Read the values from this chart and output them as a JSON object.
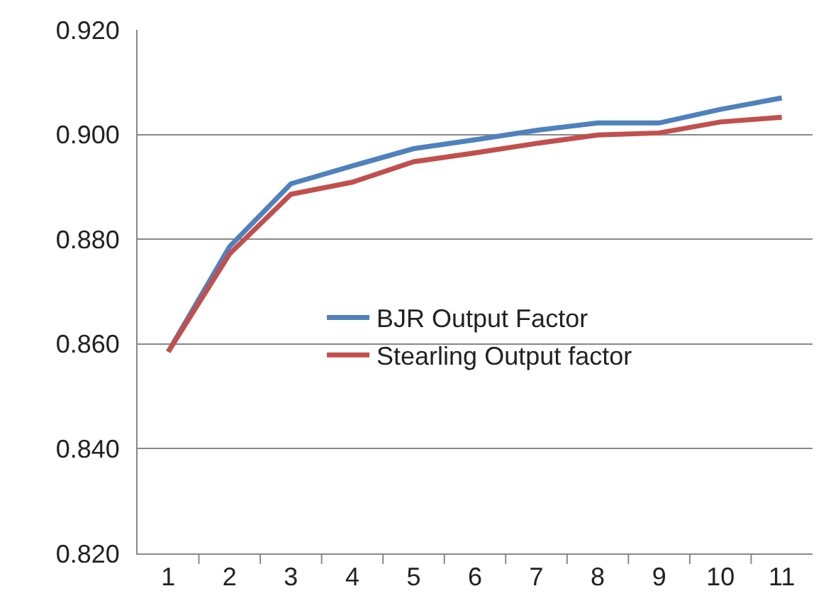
{
  "chart_data": {
    "type": "line",
    "categories": [
      "1",
      "2",
      "3",
      "4",
      "5",
      "6",
      "7",
      "8",
      "9",
      "10",
      "11"
    ],
    "series": [
      {
        "name": "BJR Output Factor",
        "color": "#4f81bd",
        "values": [
          0.8585,
          0.8786,
          0.8906,
          0.894,
          0.8973,
          0.899,
          0.9008,
          0.9022,
          0.9022,
          0.9048,
          0.907
        ]
      },
      {
        "name": "Stearling Output factor",
        "color": "#c0504d",
        "values": [
          0.8585,
          0.8772,
          0.8886,
          0.8909,
          0.8948,
          0.8965,
          0.8983,
          0.8999,
          0.9003,
          0.9024,
          0.9033
        ]
      }
    ],
    "ylim": [
      0.82,
      0.92
    ],
    "yticks": [
      {
        "value": 0.82,
        "label": "0.820"
      },
      {
        "value": 0.84,
        "label": "0.840"
      },
      {
        "value": 0.86,
        "label": "0.860"
      },
      {
        "value": 0.88,
        "label": "0.880"
      },
      {
        "value": 0.9,
        "label": "0.900"
      },
      {
        "value": 0.92,
        "label": "0.920"
      }
    ],
    "grid": "y",
    "legend": "right",
    "marker": "none",
    "line_style": "solid"
  }
}
